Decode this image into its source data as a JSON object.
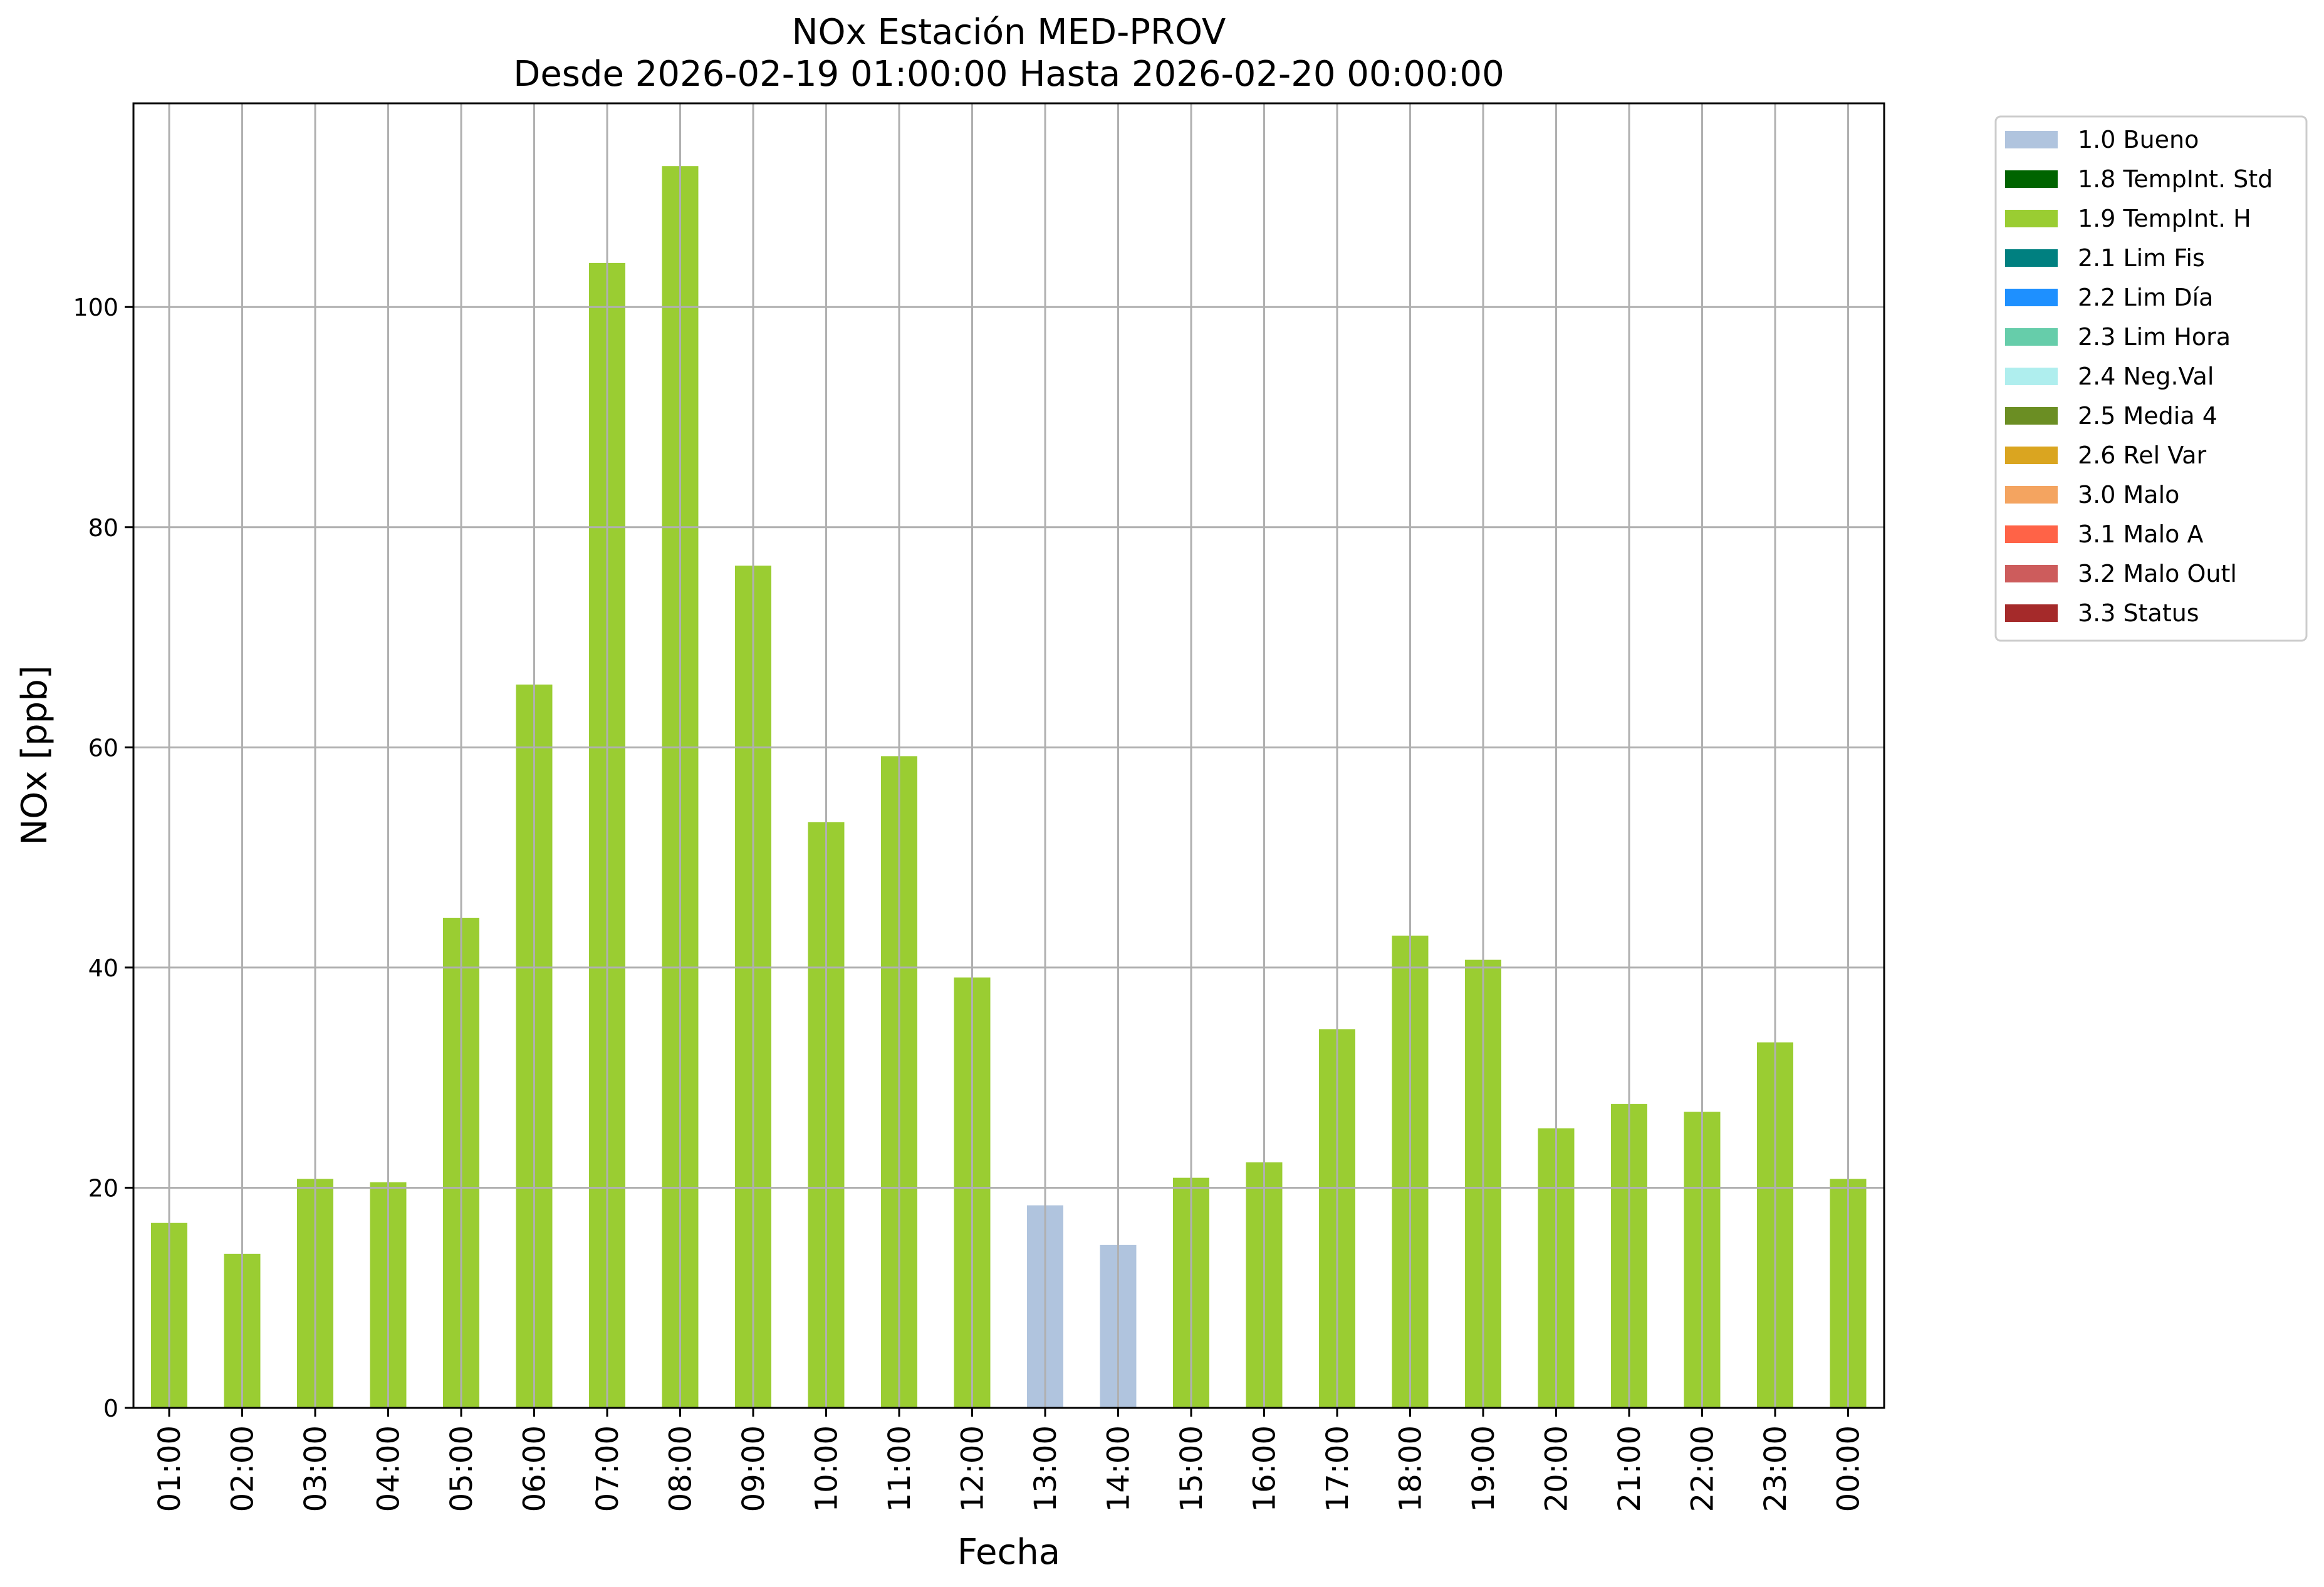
{
  "chart_data": {
    "type": "bar",
    "title": "NOx Estación MED-PROV",
    "subtitle": "Desde 2026-02-19 01:00:00 Hasta 2026-02-20 00:00:00",
    "xlabel": "Fecha",
    "ylabel": "NOx [ppb]",
    "ylim": [
      0,
      118.5
    ],
    "yticks": [
      0,
      20,
      40,
      60,
      80,
      100
    ],
    "grid": true,
    "legend_position": "outside-right",
    "categories": [
      "01:00",
      "02:00",
      "03:00",
      "04:00",
      "05:00",
      "06:00",
      "07:00",
      "08:00",
      "09:00",
      "10:00",
      "11:00",
      "12:00",
      "13:00",
      "14:00",
      "15:00",
      "16:00",
      "17:00",
      "18:00",
      "19:00",
      "20:00",
      "21:00",
      "22:00",
      "23:00",
      "00:00"
    ],
    "values": [
      16.8,
      14.0,
      20.8,
      20.5,
      44.5,
      65.7,
      104.0,
      112.8,
      76.5,
      53.2,
      59.2,
      39.1,
      18.4,
      14.8,
      20.9,
      22.3,
      34.4,
      42.9,
      40.7,
      25.4,
      27.6,
      26.9,
      33.2,
      20.8
    ],
    "flags": [
      "1.9",
      "1.9",
      "1.9",
      "1.9",
      "1.9",
      "1.9",
      "1.9",
      "1.9",
      "1.9",
      "1.9",
      "1.9",
      "1.9",
      "1.0",
      "1.0",
      "1.9",
      "1.9",
      "1.9",
      "1.9",
      "1.9",
      "1.9",
      "1.9",
      "1.9",
      "1.9",
      "1.9"
    ],
    "legend": [
      {
        "code": "1.0",
        "label": "1.0 Bueno",
        "color": "#b0c4de"
      },
      {
        "code": "1.8",
        "label": "1.8 TempInt. Std",
        "color": "#006400"
      },
      {
        "code": "1.9",
        "label": "1.9 TempInt. H",
        "color": "#9acd32"
      },
      {
        "code": "2.1",
        "label": "2.1 Lim Fis",
        "color": "#008080"
      },
      {
        "code": "2.2",
        "label": "2.2 Lim Día",
        "color": "#1e90ff"
      },
      {
        "code": "2.3",
        "label": "2.3 Lim Hora",
        "color": "#66cdaa"
      },
      {
        "code": "2.4",
        "label": "2.4 Neg.Val",
        "color": "#afeeee"
      },
      {
        "code": "2.5",
        "label": "2.5 Media 4",
        "color": "#6b8e23"
      },
      {
        "code": "2.6",
        "label": "2.6 Rel Var",
        "color": "#daa520"
      },
      {
        "code": "3.0",
        "label": "3.0 Malo",
        "color": "#f4a460"
      },
      {
        "code": "3.1",
        "label": "3.1 Malo A",
        "color": "#ff6347"
      },
      {
        "code": "3.2",
        "label": "3.2 Malo Outl",
        "color": "#cd5c5c"
      },
      {
        "code": "3.3",
        "label": "3.3 Status",
        "color": "#a52a2a"
      }
    ]
  }
}
